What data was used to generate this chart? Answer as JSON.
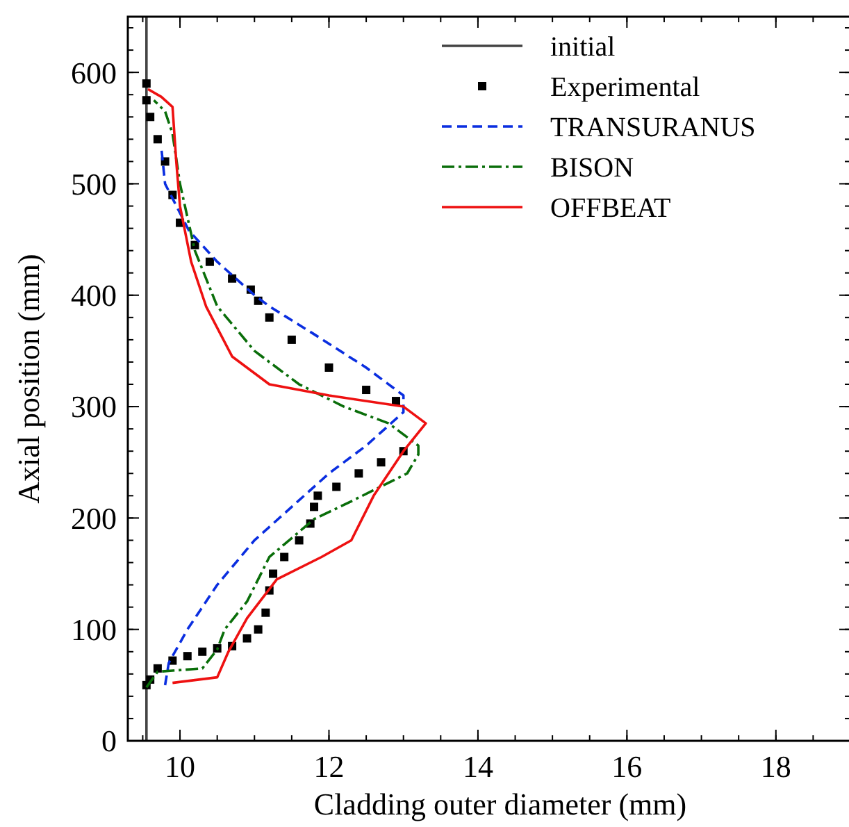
{
  "chart_data": {
    "type": "line",
    "xlabel": "Cladding outer diameter (mm)",
    "ylabel": "Axial position (mm)",
    "xlim": [
      9.3,
      19.0
    ],
    "ylim": [
      0,
      650
    ],
    "xticks": [
      10,
      12,
      14,
      16,
      18
    ],
    "yticks": [
      0,
      100,
      200,
      300,
      400,
      500,
      600
    ],
    "grid": false,
    "legend": "top right",
    "series": [
      {
        "name": "initial",
        "color": "#444444",
        "line_style": "solid",
        "x": [
          9.55,
          9.55
        ],
        "values": [
          0,
          650
        ]
      },
      {
        "name": "Experimental",
        "type": "scatter",
        "marker": "square",
        "color": "#000000",
        "x": [
          9.55,
          9.6,
          9.7,
          9.9,
          10.1,
          10.3,
          10.5,
          10.7,
          10.9,
          11.05,
          11.15,
          11.2,
          11.25,
          11.4,
          11.6,
          11.75,
          11.8,
          11.85,
          12.1,
          12.4,
          12.7,
          13.0,
          12.9,
          12.5,
          12.0,
          11.5,
          11.2,
          11.05,
          10.95,
          10.7,
          10.4,
          10.2,
          10.0,
          9.9,
          9.8,
          9.7,
          9.6,
          9.55,
          9.55
        ],
        "values": [
          50,
          55,
          65,
          72,
          76,
          80,
          83,
          85,
          92,
          100,
          115,
          135,
          150,
          165,
          180,
          195,
          210,
          220,
          228,
          240,
          250,
          260,
          305,
          315,
          335,
          360,
          380,
          395,
          405,
          415,
          430,
          445,
          465,
          490,
          520,
          540,
          560,
          575,
          590
        ]
      },
      {
        "name": "TRANSURANUS",
        "line_style": "dashed",
        "color": "#0a2ee0",
        "x": [
          9.8,
          9.85,
          10.1,
          10.5,
          11.0,
          11.5,
          12.0,
          12.5,
          13.0,
          13.0,
          12.5,
          11.8,
          11.2,
          11.0,
          10.5,
          10.12,
          9.8,
          9.75
        ],
        "values": [
          50,
          70,
          100,
          140,
          180,
          210,
          240,
          265,
          295,
          310,
          335,
          365,
          390,
          400,
          430,
          458,
          500,
          532
        ]
      },
      {
        "name": "BISON",
        "line_style": "dashdot",
        "color": "#0a6e0a",
        "x": [
          9.55,
          9.7,
          10.3,
          10.5,
          10.6,
          10.9,
          11.2,
          11.8,
          12.3,
          13.05,
          13.2,
          13.2,
          12.8,
          12.2,
          11.6,
          11.0,
          10.5,
          10.2,
          10.0,
          9.9,
          9.8,
          9.65
        ],
        "values": [
          48,
          62,
          65,
          82,
          100,
          125,
          165,
          199,
          215,
          240,
          257,
          265,
          285,
          300,
          320,
          350,
          390,
          440,
          500,
          545,
          565,
          575
        ]
      },
      {
        "name": "OFFBEAT",
        "line_style": "solid",
        "color": "#ee1111",
        "x": [
          9.9,
          10.5,
          10.65,
          10.9,
          11.3,
          11.9,
          12.3,
          12.6,
          13.0,
          13.3,
          13.0,
          12.0,
          11.2,
          10.7,
          10.35,
          10.15,
          10.0,
          9.95,
          9.9,
          9.75,
          9.57
        ],
        "values": [
          52,
          57,
          80,
          110,
          145,
          165,
          180,
          220,
          260,
          285,
          300,
          310,
          320,
          345,
          390,
          430,
          480,
          520,
          569,
          578,
          585
        ]
      }
    ]
  }
}
